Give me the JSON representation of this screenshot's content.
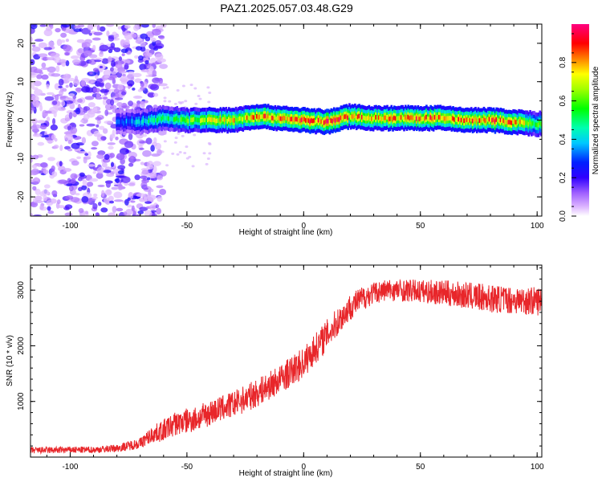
{
  "title": "PAZ1.2025.057.03.48.G29",
  "chart_data": [
    {
      "type": "heatmap",
      "xlabel": "Height of straight line (km)",
      "ylabel": "Frequency (Hz)",
      "xlim": [
        -117,
        102
      ],
      "ylim": [
        -25,
        25
      ],
      "xticks": [
        -100,
        -50,
        0,
        50,
        100
      ],
      "yticks": [
        -20,
        -10,
        0,
        10,
        20
      ],
      "colorbar": {
        "label": "Normalized spectral amplitude",
        "range": [
          0,
          1
        ],
        "ticks": [
          0.0,
          0.2,
          0.4,
          0.6,
          0.8
        ],
        "tick_labels": [
          "0.0",
          "0.2",
          "0.4",
          "0.6",
          "0.8"
        ]
      },
      "ridge": {
        "description_points_x": [
          -80,
          -70,
          -60,
          -50,
          -40,
          -30,
          -20,
          -10,
          0,
          10,
          20,
          30,
          40,
          50,
          60,
          70,
          80,
          90,
          100
        ],
        "center_frequency": [
          -0.5,
          -0.5,
          0.5,
          0.0,
          0.0,
          0.0,
          1.0,
          0.5,
          0.0,
          -0.5,
          1.0,
          0.5,
          0.5,
          0.5,
          0.5,
          0.0,
          0.0,
          -0.5,
          -1.0
        ],
        "peak_amplitude": [
          0.3,
          0.45,
          0.55,
          0.6,
          0.75,
          0.8,
          0.85,
          0.9,
          0.9,
          0.95,
          0.9,
          0.85,
          0.85,
          0.9,
          0.9,
          0.85,
          0.9,
          0.85,
          0.6
        ]
      },
      "noise_region_x": [
        -117,
        -60
      ]
    },
    {
      "type": "line",
      "xlabel": "Height of straight line (km)",
      "ylabel": "SNR (10 * v/v)",
      "xlim": [
        -117,
        102
      ],
      "ylim": [
        0,
        3450
      ],
      "xticks": [
        -100,
        -50,
        0,
        50,
        100
      ],
      "yticks": [
        1000,
        2000,
        3000
      ],
      "color": "#e8262a",
      "series": [
        {
          "x": [
            -117,
            -100,
            -90,
            -80,
            -70,
            -65,
            -60,
            -55,
            -50,
            -45,
            -40,
            -30,
            -20,
            -10,
            0,
            5,
            10,
            15,
            20,
            25,
            30,
            35,
            40,
            50,
            60,
            70,
            80,
            90,
            102
          ],
          "y": [
            120,
            130,
            130,
            160,
            250,
            400,
            480,
            600,
            650,
            700,
            800,
            950,
            1150,
            1400,
            1700,
            1950,
            2200,
            2450,
            2700,
            2850,
            2950,
            3000,
            3000,
            2980,
            2950,
            2900,
            2850,
            2820,
            2800
          ],
          "noise": [
            60,
            60,
            60,
            70,
            100,
            150,
            200,
            220,
            230,
            230,
            230,
            240,
            250,
            260,
            280,
            280,
            280,
            260,
            240,
            220,
            200,
            200,
            200,
            210,
            230,
            240,
            250,
            250,
            260
          ]
        }
      ]
    }
  ]
}
